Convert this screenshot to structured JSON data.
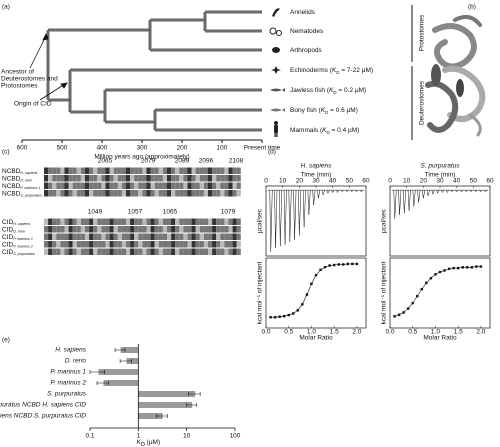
{
  "panel_labels": [
    "(a)",
    "(b)",
    "(c)",
    "(d)",
    "(e)"
  ],
  "tree": {
    "leaves": [
      {
        "label_parts": [
          "Annelids"
        ]
      },
      {
        "label_parts": [
          "Nematodes"
        ]
      },
      {
        "label_parts": [
          "Arthropods"
        ]
      },
      {
        "label_parts": [
          "Echinoderms (",
          "K",
          "D",
          " = 7-22 μM)"
        ]
      },
      {
        "label_parts": [
          "Jawless fish (",
          "K",
          "D",
          " = 0.2 μM)"
        ]
      },
      {
        "label_parts": [
          "Bony fish (",
          "K",
          "D",
          " = 0.6 μM)"
        ]
      },
      {
        "label_parts": [
          "Mammals (",
          "K",
          "D",
          " = 0.4 μM)"
        ]
      }
    ],
    "clades": [
      "Protostomes",
      "Deuterostomes"
    ],
    "ancestor_label": [
      "Ancestor of",
      "Deuterostomes and",
      "Protostomes"
    ],
    "origin_label": "Origin of CID",
    "axis": {
      "lim": [
        600,
        0
      ],
      "ticks": [
        600,
        500,
        400,
        300,
        200,
        100
      ],
      "end_label": "Present time",
      "label": "Million years ago (approximately)"
    }
  },
  "alignment": {
    "blocks": [
      {
        "group": "NCBD",
        "species": [
          "H. sapiens",
          "D. rerio",
          "P. marinus 1",
          "S. purpuratus"
        ],
        "numbers": [
          2065,
          2079,
          2089,
          2096,
          2108
        ]
      },
      {
        "group": "CID",
        "species": [
          "H. sapiens",
          "D. rerio",
          "P. marinus 1",
          "P. marinus 2",
          "S. purpuratus"
        ],
        "numbers": [
          1049,
          1057,
          1065,
          1079
        ]
      }
    ]
  },
  "itc": {
    "panels": [
      {
        "title": "H. sapiens",
        "time_label": "Time (min)",
        "raw_label": "μcal/sec",
        "heat_label": "kcal mol⁻¹ of injectant",
        "ratio_label": "Molar Ratio",
        "time_lim": [
          0,
          60
        ],
        "time_ticks": [
          0,
          10,
          20,
          30,
          40,
          50,
          60
        ],
        "raw_lim": [
          -0.8,
          0.05
        ],
        "peaks": [
          -0.75,
          -0.7,
          -0.68,
          -0.66,
          -0.63,
          -0.6,
          -0.55,
          -0.45,
          -0.3,
          -0.18,
          -0.1,
          -0.06,
          -0.04,
          -0.03,
          -0.03,
          -0.02,
          -0.02,
          -0.02,
          -0.02,
          -0.02
        ],
        "ratio_lim": [
          0,
          2.2
        ],
        "ratio_ticks": [
          {
            "value": 0,
            "label": "0.0"
          },
          {
            "value": 0.5,
            "label": "0.5"
          },
          {
            "value": 1,
            "label": "1.0"
          },
          {
            "value": 1.5,
            "label": "1.5"
          },
          {
            "value": 2,
            "label": "2.0"
          }
        ],
        "heat_lim": [
          -12,
          1
        ],
        "ratio": [
          0.1,
          0.2,
          0.3,
          0.4,
          0.5,
          0.6,
          0.7,
          0.8,
          0.9,
          1.0,
          1.1,
          1.2,
          1.3,
          1.4,
          1.5,
          1.6,
          1.7,
          1.8,
          1.9,
          2.0
        ],
        "heat": [
          -10,
          -10,
          -9.9,
          -9.8,
          -9.6,
          -9.3,
          -8.7,
          -7.6,
          -5.8,
          -3.8,
          -2.2,
          -1.2,
          -0.7,
          -0.4,
          -0.3,
          -0.2,
          -0.2,
          -0.1,
          -0.1,
          -0.1
        ]
      },
      {
        "title": "S. purpuratus",
        "time_label": "Time (min)",
        "raw_label": "μcal/sec",
        "heat_label": "kcal mol⁻¹ of injectant",
        "ratio_label": "Molar Ratio",
        "time_lim": [
          0,
          60
        ],
        "time_ticks": [
          0,
          10,
          20,
          30,
          40,
          50,
          60
        ],
        "raw_lim": [
          -0.8,
          0.05
        ],
        "peaks": [
          -0.35,
          -0.3,
          -0.28,
          -0.25,
          -0.2,
          -0.15,
          -0.1,
          -0.07,
          -0.05,
          -0.04,
          -0.03,
          -0.03,
          -0.02,
          -0.02,
          -0.02,
          -0.02,
          -0.02,
          -0.02,
          -0.02,
          -0.02
        ],
        "ratio_lim": [
          0,
          2.2
        ],
        "ratio_ticks": [
          {
            "value": 0,
            "label": "0.0"
          },
          {
            "value": 0.5,
            "label": "0.5"
          },
          {
            "value": 1,
            "label": "1.0"
          },
          {
            "value": 1.5,
            "label": "1.5"
          },
          {
            "value": 2,
            "label": "2.0"
          }
        ],
        "heat_lim": [
          -8,
          1
        ],
        "ratio": [
          0.1,
          0.2,
          0.3,
          0.4,
          0.5,
          0.6,
          0.7,
          0.8,
          0.9,
          1.0,
          1.1,
          1.2,
          1.3,
          1.4,
          1.5,
          1.6,
          1.7,
          1.8,
          1.9,
          2.0
        ],
        "heat": [
          -6.5,
          -6.3,
          -6,
          -5.5,
          -4.8,
          -3.9,
          -3,
          -2.2,
          -1.6,
          -1.1,
          -0.8,
          -0.6,
          -0.4,
          -0.3,
          -0.3,
          -0.2,
          -0.2,
          -0.2,
          -0.1,
          -0.1
        ]
      }
    ]
  },
  "chart_data": {
    "type": "bar",
    "orientation": "horizontal",
    "categories": [
      "H. sapiens",
      "D. rerio",
      "P. marinus 1",
      "P. marinus 2",
      "S. purpuratus",
      "S. purpuratus NCBD H. sapiens CID",
      "H. sapiens NCBD S. purpuratus CID"
    ],
    "values": [
      0.43,
      0.57,
      0.15,
      0.19,
      15,
      13,
      3.2
    ],
    "errors": [
      0.1,
      0.15,
      0.05,
      0.05,
      4,
      3,
      0.8
    ],
    "color": "#9a9a9a",
    "base": 1,
    "log_x": true,
    "xlim": [
      0.1,
      100
    ],
    "xticks": [
      0.1,
      1,
      10,
      100
    ],
    "xlabel_parts": [
      "K",
      "D",
      " (μM)"
    ]
  }
}
